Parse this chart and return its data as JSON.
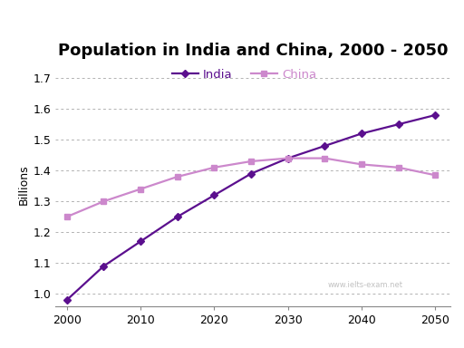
{
  "title": "Population in India and China, 2000 - 2050",
  "ylabel": "Billions",
  "xlabel": "",
  "india_x": [
    2000,
    2005,
    2010,
    2015,
    2020,
    2025,
    2030,
    2035,
    2040,
    2045,
    2050
  ],
  "india_y": [
    0.98,
    1.09,
    1.17,
    1.25,
    1.32,
    1.39,
    1.44,
    1.48,
    1.52,
    1.55,
    1.58
  ],
  "china_x": [
    2000,
    2005,
    2010,
    2015,
    2020,
    2025,
    2030,
    2035,
    2040,
    2045,
    2050
  ],
  "china_y": [
    1.25,
    1.3,
    1.34,
    1.38,
    1.41,
    1.43,
    1.44,
    1.44,
    1.42,
    1.41,
    1.385
  ],
  "india_color": "#5b0f8e",
  "china_color": "#cc88cc",
  "india_marker": "D",
  "china_marker": "s",
  "ylim": [
    0.96,
    1.75
  ],
  "yticks": [
    1.0,
    1.1,
    1.2,
    1.3,
    1.4,
    1.5,
    1.6,
    1.7
  ],
  "xticks": [
    2000,
    2010,
    2020,
    2030,
    2040,
    2050
  ],
  "xlim": [
    1998.5,
    2052
  ],
  "watermark": "www.ielts-exam.net",
  "legend_india": "India",
  "legend_china": "China",
  "background_color": "#ffffff",
  "grid_color": "#aaaaaa",
  "title_fontsize": 13,
  "axis_label_fontsize": 9,
  "tick_fontsize": 9,
  "legend_fontsize": 9.5
}
